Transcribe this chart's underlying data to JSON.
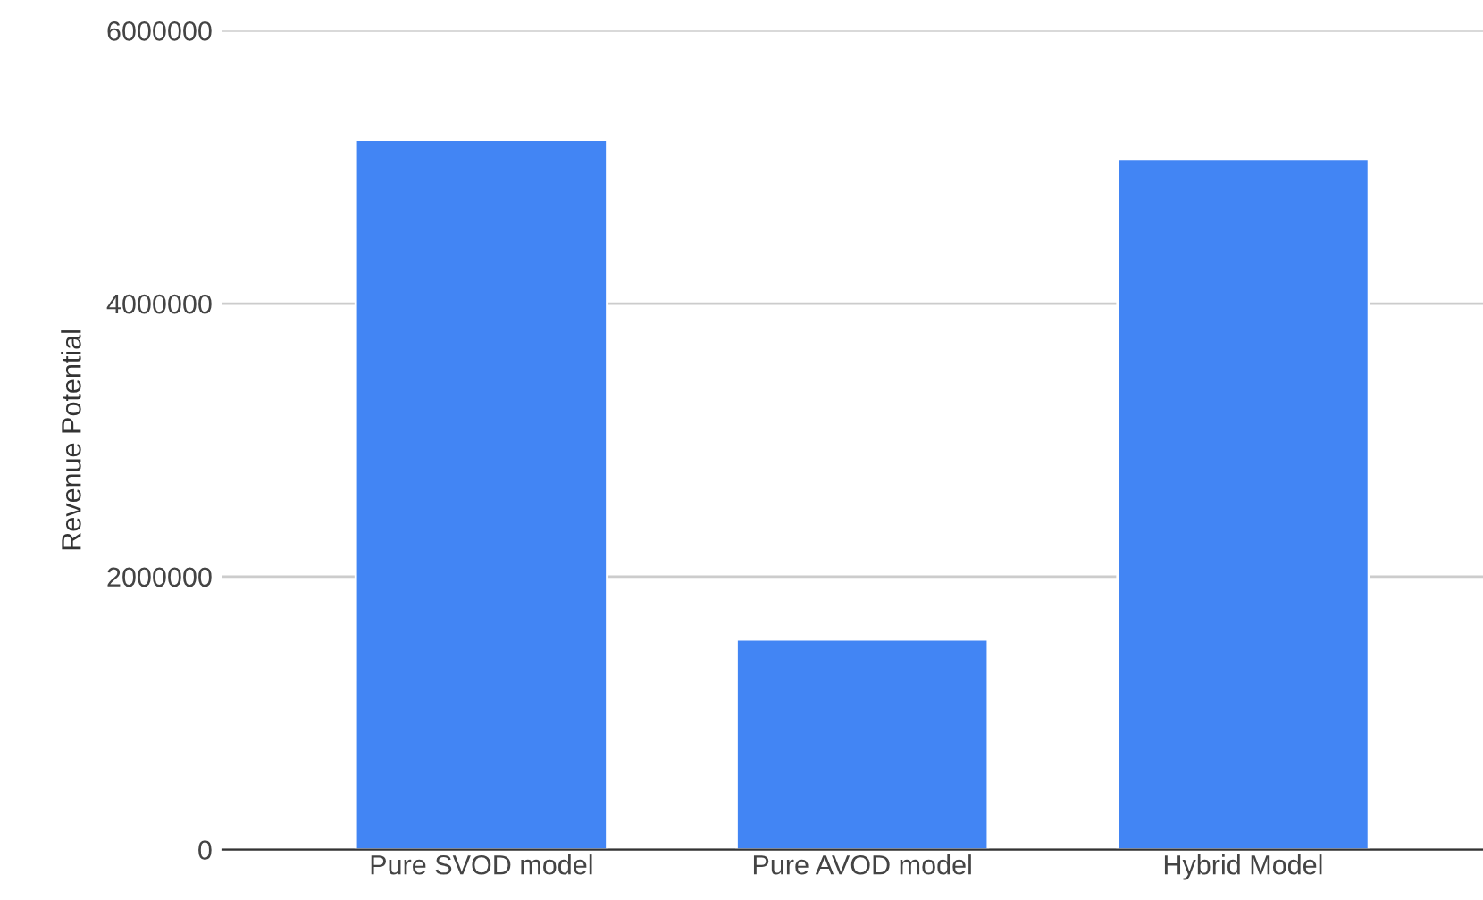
{
  "chart_data": {
    "type": "bar",
    "ylabel": "Revenue Potential",
    "categories": [
      "Pure SVOD model",
      "Pure AVOD model",
      "Hybrid Model"
    ],
    "values": [
      5200000,
      1540000,
      5060000
    ],
    "color": "#4285f4",
    "ylim": [
      0,
      6000000
    ],
    "yticks": [
      0,
      2000000,
      4000000,
      6000000
    ],
    "grid": "y"
  }
}
